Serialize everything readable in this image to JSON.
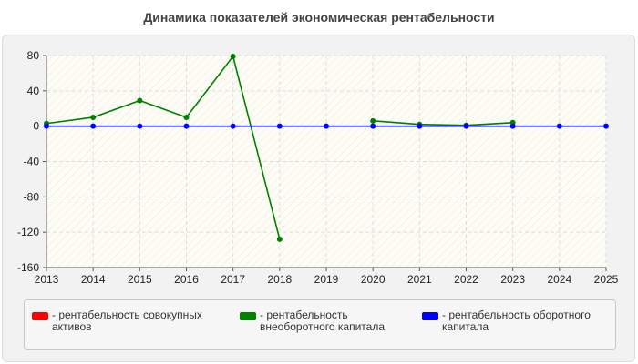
{
  "chart_data": {
    "type": "line",
    "title": "Динамика показателей экономическая рентабельности",
    "x": [
      "2013",
      "2014",
      "2015",
      "2016",
      "2017",
      "2018",
      "2019",
      "2020",
      "2021",
      "2022",
      "2023",
      "2024",
      "2025"
    ],
    "ylim": [
      -160,
      80
    ],
    "yticks": [
      80,
      40,
      0,
      -40,
      -80,
      -120,
      -160
    ],
    "ytick_labels": [
      "80",
      "40",
      "0",
      "-40",
      "-80",
      "-120",
      "-160"
    ],
    "grid": true,
    "legend_position": "bottom",
    "series": [
      {
        "name": "- рентабельность совокупных активов",
        "color": "#ff0000",
        "values": [
          null,
          null,
          null,
          null,
          null,
          null,
          null,
          null,
          null,
          null,
          null,
          null,
          null
        ]
      },
      {
        "name": "- рентабельность внеоборотного капитала",
        "color": "#008000",
        "values": [
          3,
          10,
          29,
          10,
          79,
          -128,
          null,
          6,
          2,
          1,
          4,
          null,
          null
        ]
      },
      {
        "name": "- рентабельность оборотного капитала",
        "color": "#0000ff",
        "values": [
          0,
          0,
          0,
          0,
          0,
          0,
          0,
          0,
          0,
          0,
          0,
          0,
          0
        ]
      }
    ]
  }
}
